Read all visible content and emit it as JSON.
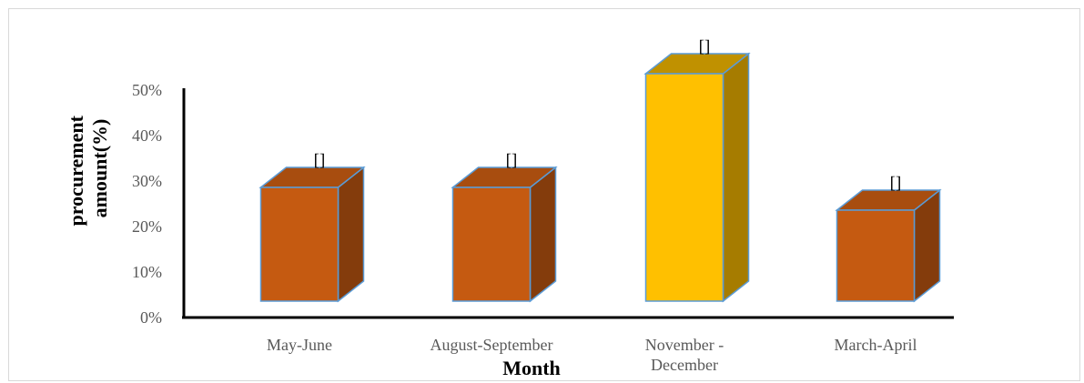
{
  "chart_data": {
    "type": "bar",
    "categories": [
      [
        "May-June"
      ],
      [
        "August-September"
      ],
      [
        "November -",
        "December"
      ],
      [
        "March-April"
      ]
    ],
    "values": [
      25,
      25,
      50,
      20
    ],
    "data_labels": [
      "[]",
      "[]",
      "[]",
      "[]"
    ],
    "title": "",
    "xlabel": "Month",
    "ylabel_lines": [
      "procurement",
      "amount(%)"
    ],
    "ylim": [
      0,
      50
    ],
    "yticks": [
      "0%",
      "10%",
      "20%",
      "30%",
      "40%",
      "50%"
    ],
    "grid": false,
    "legend": "none",
    "style": "3d-column",
    "colors": {
      "bar_front": "#c55a11",
      "bar_top": "#a84d0f",
      "bar_side": "#843c0c",
      "highlight_front": "#ffc000",
      "highlight_top": "#c09100",
      "highlight_side": "#a67c00",
      "bar_outline": "#5b9bd5",
      "highlight_index": 2
    }
  }
}
